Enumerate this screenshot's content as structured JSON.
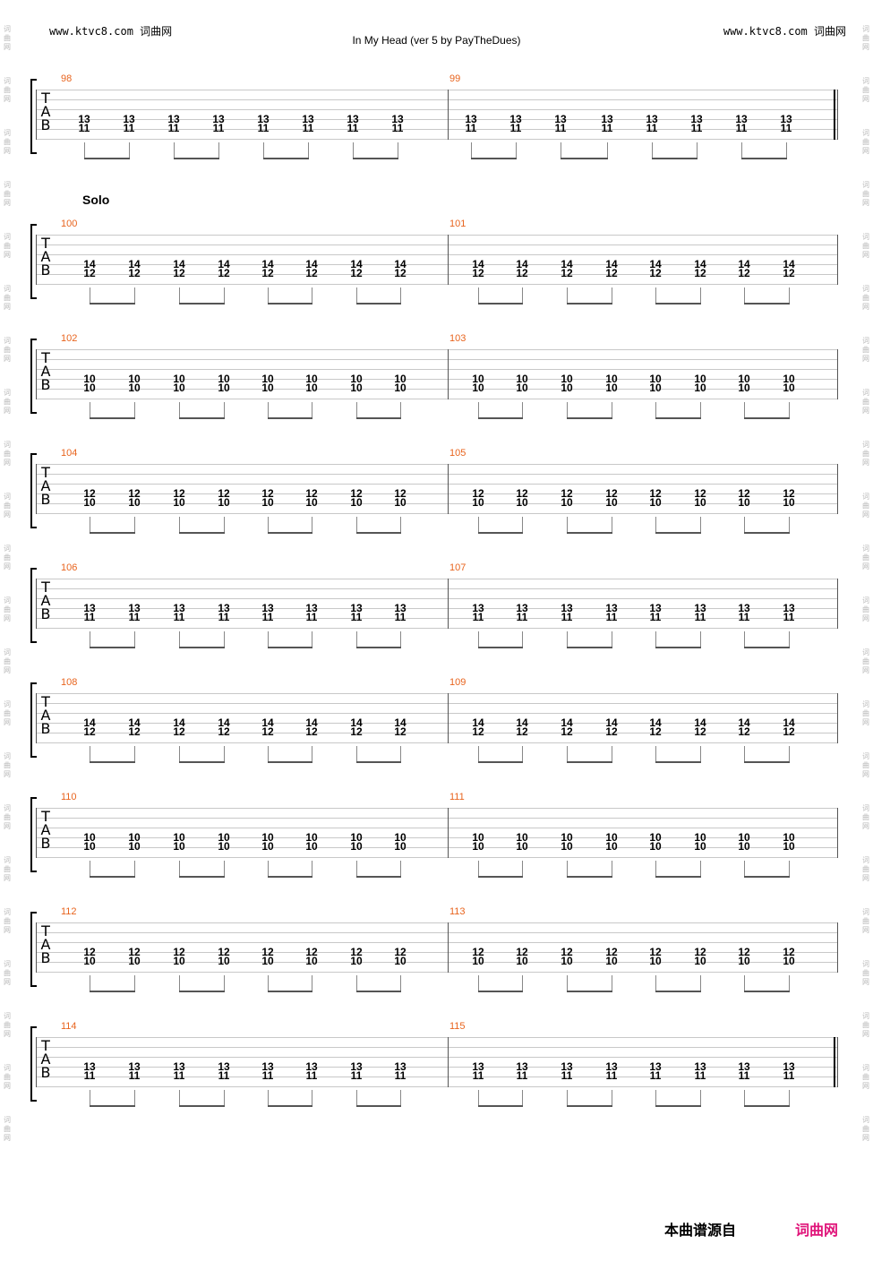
{
  "header": {
    "site_left": "www.ktvc8.com 词曲网",
    "site_right": "www.ktvc8.com 词曲网",
    "title": "In My Head (ver 5 by PayTheDues)"
  },
  "watermark": {
    "side_text": "词曲网"
  },
  "section_label": "Solo",
  "tab_clef": [
    "T",
    "A",
    "B"
  ],
  "systems": [
    {
      "measures": [
        "98",
        "99"
      ],
      "top": "13",
      "bottom": "11",
      "final": true
    },
    {
      "measures": [
        "100",
        "101"
      ],
      "top": "14",
      "bottom": "12",
      "final": false
    },
    {
      "measures": [
        "102",
        "103"
      ],
      "top": "10",
      "bottom": "10",
      "final": false
    },
    {
      "measures": [
        "104",
        "105"
      ],
      "top": "12",
      "bottom": "10",
      "final": false
    },
    {
      "measures": [
        "106",
        "107"
      ],
      "top": "13",
      "bottom": "11",
      "final": false
    },
    {
      "measures": [
        "108",
        "109"
      ],
      "top": "14",
      "bottom": "12",
      "final": false
    },
    {
      "measures": [
        "110",
        "111"
      ],
      "top": "10",
      "bottom": "10",
      "final": false
    },
    {
      "measures": [
        "112",
        "113"
      ],
      "top": "12",
      "bottom": "10",
      "final": false
    },
    {
      "measures": [
        "114",
        "115"
      ],
      "top": "13",
      "bottom": "11",
      "final": true
    }
  ],
  "footer": {
    "source_label": "本曲谱源自",
    "logo": "词曲网"
  }
}
